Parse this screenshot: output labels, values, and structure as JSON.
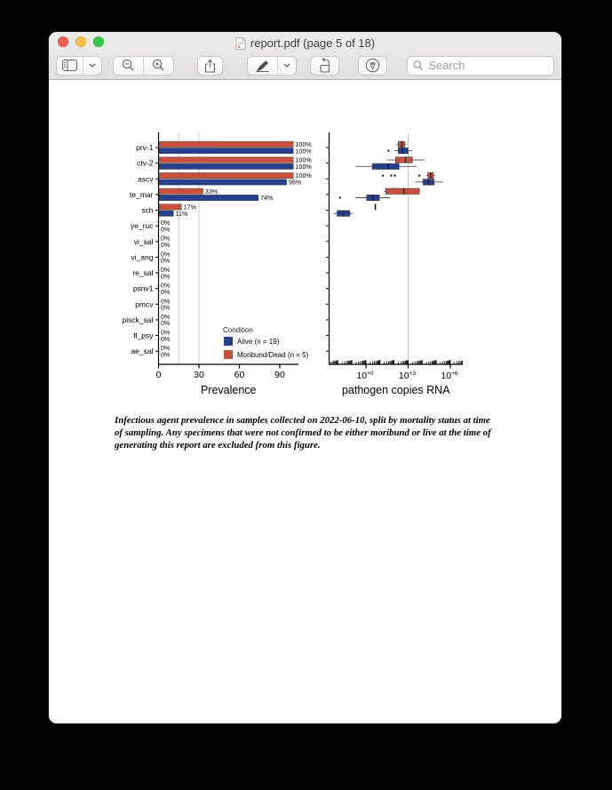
{
  "window": {
    "title": "report.pdf (page 5 of 18)",
    "traffic_lights": {
      "close": "#f35e50",
      "minimize": "#f8bd45",
      "zoom": "#34c748"
    }
  },
  "toolbar": {
    "buttons": [
      {
        "name": "sidebar",
        "icon": "sidebar-icon",
        "has_dropdown": true
      },
      {
        "name": "zoom-out",
        "icon": "magnifier-minus-icon"
      },
      {
        "name": "zoom-in",
        "icon": "magnifier-plus-icon"
      },
      {
        "name": "share",
        "icon": "share-icon"
      },
      {
        "name": "markup-pen",
        "icon": "marker-pen-icon",
        "has_dropdown": true
      },
      {
        "name": "rotate",
        "icon": "rotate-left-icon"
      },
      {
        "name": "markup-toolbar",
        "icon": "pen-circle-icon"
      }
    ],
    "search_placeholder": "Search"
  },
  "figure": {
    "caption": "Infectious agent prevalence in samples collected on 2022-06-10, split by mortality status at time of sampling. Any specimens that were not confirmed to be either moribund or live at the time of generating this report are excluded from this figure."
  },
  "colors": {
    "alive_blue": "#27408b",
    "moribund_red": "#c9503c",
    "gridline": "#c8c8c8",
    "axis": "#000000"
  },
  "chart_data": [
    {
      "type": "bar",
      "orientation": "horizontal",
      "xlabel": "Prevalence",
      "xticks": [
        0,
        30,
        60,
        90
      ],
      "xlim": [
        0,
        105
      ],
      "gridlines_x": [
        15,
        30
      ],
      "categories": [
        "prv-1",
        "ctv-2",
        "ascv",
        "te_mar",
        "sch",
        "ye_ruc",
        "vi_sal",
        "vi_ang",
        "re_sal",
        "psnv1",
        "pmcv",
        "pisck_sal",
        "fl_psy",
        "ae_sal"
      ],
      "series": [
        {
          "name": "Moribund/Dead (n = 5)",
          "position": "top",
          "color": "#c9503c",
          "values": [
            100,
            100,
            100,
            33,
            17,
            0,
            0,
            0,
            0,
            0,
            0,
            0,
            0,
            0
          ]
        },
        {
          "name": "Alive (n = 19)",
          "position": "bottom",
          "color": "#27408b",
          "values": [
            100,
            100,
            95,
            74,
            11,
            0,
            0,
            0,
            0,
            0,
            0,
            0,
            0,
            0
          ]
        }
      ],
      "value_label_suffix": "%",
      "legend": {
        "title": "Condition",
        "entries": [
          {
            "label": "Alive (n = 19)",
            "color": "#27408b"
          },
          {
            "label": "Moribund/Dead (n = 5)",
            "color": "#c9503c"
          }
        ]
      }
    },
    {
      "type": "boxplot",
      "orientation": "horizontal",
      "xlabel": "pathogen copies RNA",
      "xscale": "log10",
      "xlim_log": [
        -2.6,
        6.9
      ],
      "gridlines_log": [
        3
      ],
      "xticks": [
        {
          "log": 0,
          "base": "10",
          "sup": "+0"
        },
        {
          "log": 3,
          "base": "10",
          "sup": "+3"
        },
        {
          "log": 6,
          "base": "10",
          "sup": "+6"
        }
      ],
      "categories": [
        "prv-1",
        "ctv-2",
        "ascv",
        "te_mar",
        "sch",
        "ye_ruc",
        "vi_sal",
        "vi_ang",
        "re_sal",
        "psnv1",
        "pmcv",
        "pisck_sal",
        "fl_psy",
        "ae_sal"
      ],
      "boxes": [
        {
          "category": "prv-1",
          "group": "moribund",
          "color": "#c9503c",
          "lo": 2.2,
          "q1": 2.3,
          "med": 2.55,
          "q3": 2.75,
          "hi": 2.85,
          "outliers": []
        },
        {
          "category": "prv-1",
          "group": "alive",
          "color": "#27408b",
          "lo": 2.0,
          "q1": 2.3,
          "med": 2.6,
          "q3": 3.0,
          "hi": 3.3,
          "outliers": [
            1.6
          ]
        },
        {
          "category": "ctv-2",
          "group": "moribund",
          "color": "#c9503c",
          "lo": 1.5,
          "q1": 2.1,
          "med": 2.8,
          "q3": 3.3,
          "hi": 4.2,
          "outliers": []
        },
        {
          "category": "ctv-2",
          "group": "alive",
          "color": "#27408b",
          "lo": -0.75,
          "q1": 0.45,
          "med": 1.6,
          "q3": 2.35,
          "hi": 3.6,
          "outliers": []
        },
        {
          "category": "ascv",
          "group": "moribund",
          "color": "#c9503c",
          "lo": 4.3,
          "q1": 4.4,
          "med": 4.6,
          "q3": 4.8,
          "hi": 4.9,
          "outliers": [
            1.2,
            1.8,
            2.05,
            3.8
          ]
        },
        {
          "category": "ascv",
          "group": "alive",
          "color": "#27408b",
          "lo": 3.5,
          "q1": 4.05,
          "med": 4.45,
          "q3": 4.85,
          "hi": 5.5,
          "outliers": []
        },
        {
          "category": "te_mar",
          "group": "moribund",
          "color": "#c9503c",
          "lo": 1.25,
          "q1": 1.4,
          "med": 2.7,
          "q3": 3.8,
          "hi": 3.85,
          "outliers": []
        },
        {
          "category": "te_mar",
          "group": "alive",
          "color": "#27408b",
          "lo": -0.75,
          "q1": 0.05,
          "med": 0.5,
          "q3": 0.95,
          "hi": 1.7,
          "outliers": [
            -1.85
          ]
        },
        {
          "category": "sch",
          "group": "moribund",
          "color": "#c9503c",
          "lo": 0.65,
          "q1": 0.65,
          "med": 0.65,
          "q3": 0.65,
          "hi": 0.65,
          "outliers": []
        },
        {
          "category": "sch",
          "group": "alive",
          "color": "#27408b",
          "lo": -2.3,
          "q1": -2.05,
          "med": -1.6,
          "q3": -1.15,
          "hi": -0.95,
          "outliers": []
        }
      ]
    }
  ]
}
